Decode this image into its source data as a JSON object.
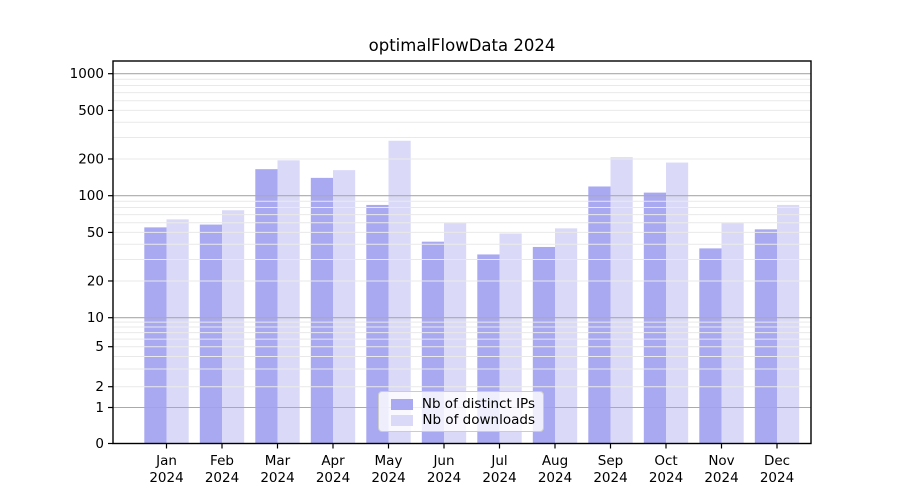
{
  "title": "optimalFlowData 2024",
  "chart_data": {
    "type": "bar",
    "title": "optimalFlowData 2024",
    "categories": [
      "Jan",
      "Feb",
      "Mar",
      "Apr",
      "May",
      "Jun",
      "Jul",
      "Aug",
      "Sep",
      "Oct",
      "Nov",
      "Dec"
    ],
    "category_year": "2024",
    "series": [
      {
        "name": "Nb of distinct IPs",
        "color": "#a9a9f1",
        "values": [
          55,
          58,
          165,
          140,
          84,
          42,
          33,
          38,
          119,
          106,
          37,
          53
        ]
      },
      {
        "name": "Nb of downloads",
        "color": "#dadaf8",
        "values": [
          64,
          76,
          195,
          162,
          282,
          60,
          49,
          54,
          207,
          187,
          60,
          84
        ]
      }
    ],
    "xlabel": "",
    "ylabel": "",
    "yscale": "symlog",
    "yticks": [
      0,
      1,
      2,
      5,
      10,
      20,
      50,
      100,
      200,
      500,
      1000
    ],
    "ylim": [
      0,
      1270
    ],
    "grid": true,
    "grid_position": "above-bars",
    "legend_position": "lower center"
  },
  "colors": {
    "bar_dark": "#a9a9f1",
    "bar_light": "#dadaf8",
    "grid_major": "#aaaaaa",
    "grid_minor": "#e9e9e9",
    "axis": "#000000",
    "text": "#000000",
    "legend_border": "#cccccc"
  }
}
